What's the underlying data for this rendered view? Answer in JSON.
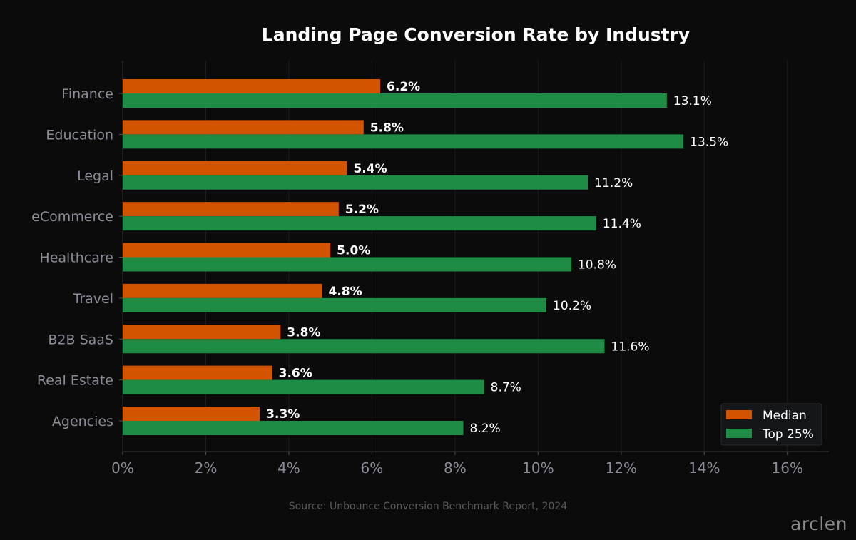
{
  "chart_data": {
    "type": "bar",
    "orientation": "horizontal",
    "title": "Landing Page Conversion Rate by Industry",
    "categories": [
      "Finance",
      "Education",
      "Legal",
      "eCommerce",
      "Healthcare",
      "Travel",
      "B2B SaaS",
      "Real Estate",
      "Agencies"
    ],
    "series": [
      {
        "name": "Median",
        "color": "#d35400",
        "values": [
          6.2,
          5.8,
          5.4,
          5.2,
          5.0,
          4.8,
          3.8,
          3.6,
          3.3
        ]
      },
      {
        "name": "Top 25%",
        "color": "#1e8c45",
        "values": [
          13.1,
          13.5,
          11.2,
          11.4,
          10.8,
          10.2,
          11.6,
          8.7,
          8.2
        ]
      }
    ],
    "data_labels": {
      "Median": [
        "6.2%",
        "5.8%",
        "5.4%",
        "5.2%",
        "5.0%",
        "4.8%",
        "3.8%",
        "3.6%",
        "3.3%"
      ],
      "Top 25%": [
        "13.1%",
        "13.5%",
        "11.2%",
        "11.4%",
        "10.8%",
        "10.2%",
        "11.6%",
        "8.7%",
        "8.2%"
      ]
    },
    "xlim": [
      0,
      17
    ],
    "xticks": [
      0,
      2,
      4,
      6,
      8,
      10,
      12,
      14,
      16
    ],
    "xtick_labels": [
      "0%",
      "2%",
      "4%",
      "6%",
      "8%",
      "10%",
      "12%",
      "14%",
      "16%"
    ],
    "xlabel": "",
    "ylabel": "",
    "grid": "vertical, faint",
    "legend": "bottom-right"
  },
  "source": "Source: Unbounce Conversion Benchmark Report, 2024",
  "watermark": "arclen"
}
